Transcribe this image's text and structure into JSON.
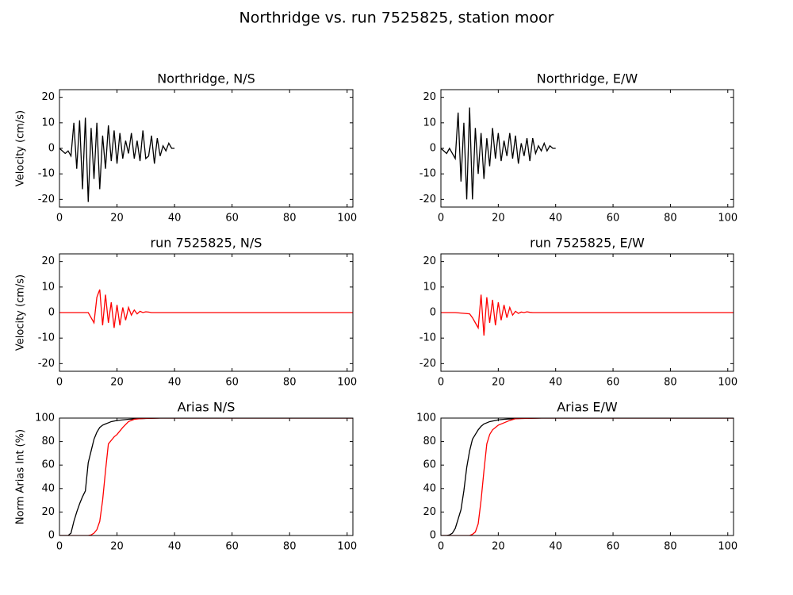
{
  "title": "Northridge vs. run 7525825, station moor",
  "chart_data": [
    {
      "type": "line",
      "title": "Northridge, N/S",
      "ylabel": "Velocity (cm/s)",
      "x": [
        0,
        1,
        2,
        3,
        4,
        5,
        6,
        7,
        8,
        9,
        10,
        11,
        12,
        13,
        14,
        15,
        16,
        17,
        18,
        19,
        20,
        21,
        22,
        23,
        24,
        25,
        26,
        27,
        28,
        29,
        30,
        31,
        32,
        33,
        34,
        35,
        36,
        37,
        38,
        39,
        40
      ],
      "series": [
        {
          "color": "#000000",
          "values": [
            0,
            -1,
            -2,
            -1,
            -3,
            10,
            -8,
            11,
            -16,
            12,
            -21,
            8,
            -12,
            10,
            -16,
            5,
            -8,
            9,
            -5,
            7,
            -6,
            6,
            -4,
            3,
            -2,
            6,
            -4,
            3,
            -5,
            7,
            -4,
            -3,
            5,
            -6,
            4,
            -3,
            1,
            -1,
            2,
            0,
            0
          ]
        }
      ],
      "xlim": [
        0,
        102
      ],
      "ylim": [
        -23,
        23
      ],
      "xticks": [
        0,
        20,
        40,
        60,
        80,
        100
      ],
      "yticks": [
        -20,
        -10,
        0,
        10,
        20
      ]
    },
    {
      "type": "line",
      "title": "Northridge, E/W",
      "x": [
        0,
        1,
        2,
        3,
        4,
        5,
        6,
        7,
        8,
        9,
        10,
        11,
        12,
        13,
        14,
        15,
        16,
        17,
        18,
        19,
        20,
        21,
        22,
        23,
        24,
        25,
        26,
        27,
        28,
        29,
        30,
        31,
        32,
        33,
        34,
        35,
        36,
        37,
        38,
        39,
        40
      ],
      "series": [
        {
          "color": "#000000",
          "values": [
            0,
            -1,
            -2,
            0,
            -2,
            -4,
            14,
            -13,
            10,
            -20,
            16,
            -20,
            8,
            -10,
            6,
            -12,
            4,
            -7,
            8,
            -4,
            6,
            -5,
            3,
            -3,
            6,
            -4,
            5,
            -6,
            2,
            -3,
            4,
            -5,
            4,
            -2,
            1,
            -1,
            2,
            -1,
            1,
            0,
            0
          ]
        }
      ],
      "xlim": [
        0,
        102
      ],
      "ylim": [
        -23,
        23
      ],
      "xticks": [
        0,
        20,
        40,
        60,
        80,
        100
      ],
      "yticks": [
        -20,
        -10,
        0,
        10,
        20
      ]
    },
    {
      "type": "line",
      "title": "run 7525825, N/S",
      "ylabel": "Velocity (cm/s)",
      "x": [
        0,
        5,
        10,
        11,
        12,
        13,
        14,
        15,
        16,
        17,
        18,
        19,
        20,
        21,
        22,
        23,
        24,
        25,
        26,
        27,
        28,
        29,
        30,
        31,
        32,
        40,
        60,
        80,
        100,
        102
      ],
      "series": [
        {
          "color": "#ff0000",
          "values": [
            0,
            0,
            0,
            -2,
            -4,
            6,
            9,
            -5,
            7,
            -4,
            4,
            -6,
            3,
            -5,
            2,
            -3,
            2,
            -1,
            1,
            -0.5,
            0.5,
            0,
            0.3,
            0.2,
            0,
            0,
            0,
            0,
            0,
            0
          ]
        }
      ],
      "xlim": [
        0,
        102
      ],
      "ylim": [
        -23,
        23
      ],
      "xticks": [
        0,
        20,
        40,
        60,
        80,
        100
      ],
      "yticks": [
        -20,
        -10,
        0,
        10,
        20
      ]
    },
    {
      "type": "line",
      "title": "run 7525825, E/W",
      "x": [
        0,
        5,
        10,
        11,
        12,
        13,
        14,
        15,
        16,
        17,
        18,
        19,
        20,
        21,
        22,
        23,
        24,
        25,
        26,
        27,
        28,
        29,
        30,
        31,
        32,
        40,
        60,
        80,
        100,
        102
      ],
      "series": [
        {
          "color": "#ff0000",
          "values": [
            0,
            0,
            -0.5,
            -2,
            -4,
            -6,
            7,
            -9,
            6,
            -4,
            5,
            -5,
            4,
            -3,
            3,
            -2,
            2,
            -1,
            0.5,
            -0.3,
            0.2,
            0,
            0.3,
            0.1,
            0,
            0,
            0,
            0,
            0,
            0
          ]
        }
      ],
      "xlim": [
        0,
        102
      ],
      "ylim": [
        -23,
        23
      ],
      "xticks": [
        0,
        20,
        40,
        60,
        80,
        100
      ],
      "yticks": [
        -20,
        -10,
        0,
        10,
        20
      ]
    },
    {
      "type": "line",
      "title": "Arias N/S",
      "ylabel": "Norm Arias Int (%)",
      "x": [
        0,
        2,
        3,
        4,
        5,
        6,
        7,
        8,
        9,
        10,
        11,
        12,
        13,
        14,
        15,
        16,
        17,
        18,
        19,
        20,
        22,
        24,
        26,
        28,
        30,
        35,
        40,
        102
      ],
      "series": [
        {
          "color": "#000000",
          "values": [
            0,
            0,
            0,
            2,
            12,
            20,
            27,
            33,
            38,
            62,
            72,
            82,
            88,
            92,
            94,
            95,
            96,
            97,
            97.5,
            98,
            98.5,
            99,
            99.3,
            99.5,
            99.7,
            100,
            100,
            100
          ]
        },
        {
          "color": "#ff0000",
          "values": [
            0,
            0,
            0,
            0,
            0,
            0,
            0,
            0,
            0,
            0,
            0.5,
            2,
            5,
            12,
            30,
            55,
            78,
            81,
            84,
            86,
            92,
            97,
            99,
            99.5,
            99.8,
            100,
            100,
            100
          ]
        }
      ],
      "xlim": [
        0,
        102
      ],
      "ylim": [
        0,
        100
      ],
      "xticks": [
        0,
        20,
        40,
        60,
        80,
        100
      ],
      "yticks": [
        0,
        20,
        40,
        60,
        80,
        100
      ]
    },
    {
      "type": "line",
      "title": "Arias E/W",
      "x": [
        0,
        2,
        3,
        4,
        5,
        6,
        7,
        8,
        9,
        10,
        11,
        12,
        13,
        14,
        15,
        16,
        17,
        18,
        19,
        20,
        22,
        24,
        26,
        28,
        30,
        35,
        40,
        102
      ],
      "series": [
        {
          "color": "#000000",
          "values": [
            0,
            0,
            0.5,
            2,
            6,
            14,
            22,
            38,
            58,
            72,
            82,
            86,
            90,
            93,
            95,
            96,
            97,
            97.5,
            98,
            98.5,
            99,
            99.3,
            99.5,
            99.7,
            99.8,
            100,
            100,
            100
          ]
        },
        {
          "color": "#ff0000",
          "values": [
            0,
            0,
            0,
            0,
            0,
            0,
            0,
            0,
            0,
            0,
            1,
            3,
            10,
            30,
            55,
            78,
            86,
            90,
            92,
            94,
            96,
            98,
            99.5,
            99.7,
            99.8,
            100,
            100,
            100
          ]
        }
      ],
      "xlim": [
        0,
        102
      ],
      "ylim": [
        0,
        100
      ],
      "xticks": [
        0,
        20,
        40,
        60,
        80,
        100
      ],
      "yticks": [
        0,
        20,
        40,
        60,
        80,
        100
      ]
    }
  ]
}
